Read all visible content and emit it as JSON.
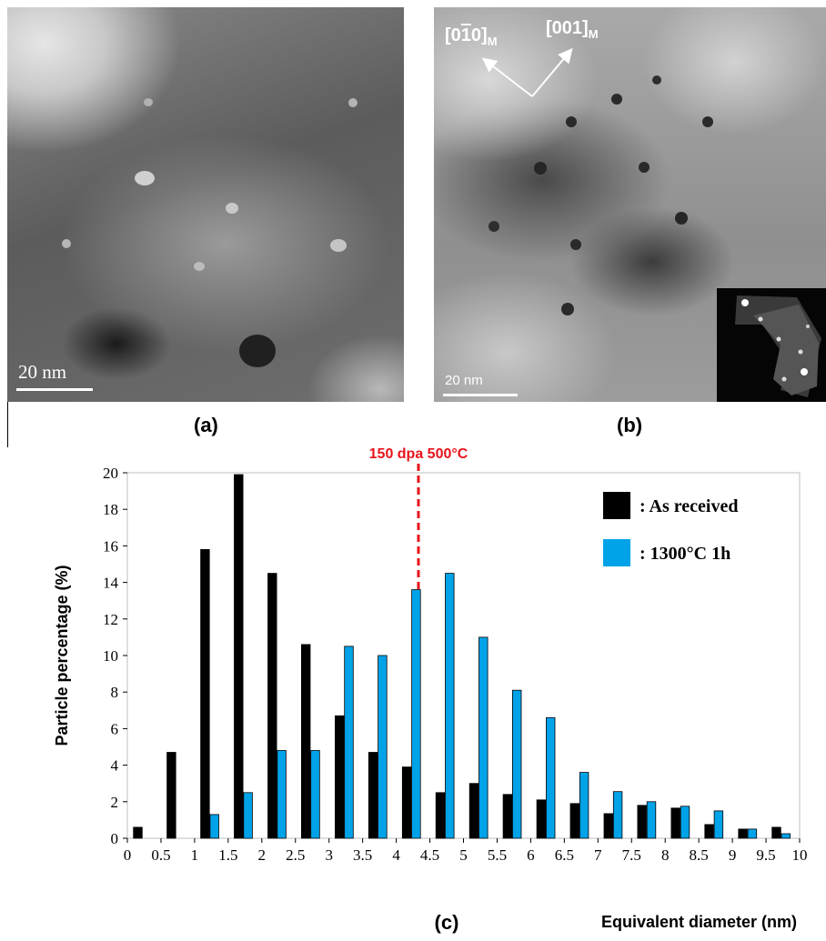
{
  "panel_a": {
    "caption": "(a)",
    "scale_bar_label": "20 nm"
  },
  "panel_b": {
    "caption": "(b)",
    "scale_bar_label": "20 nm",
    "direction_1": "[0",
    "direction_1_bar": "1",
    "direction_1_end": "0]",
    "direction_1_sub": "M",
    "direction_2": "[001]",
    "direction_2_sub": "M"
  },
  "panel_c": {
    "caption": "(c)"
  },
  "chart_data": {
    "type": "bar",
    "ylabel": "Particle percentage (%)",
    "xlabel": "Equivalent diameter (nm)",
    "ylim": [
      0,
      20
    ],
    "xlim": [
      0,
      10
    ],
    "y_ticks": [
      "0",
      "2",
      "4",
      "6",
      "8",
      "10",
      "12",
      "14",
      "16",
      "18",
      "20"
    ],
    "x_ticks": [
      "0",
      "0.5",
      "1",
      "1.5",
      "2",
      "2.5",
      "3",
      "3.5",
      "4",
      "4.5",
      "5",
      "5.5",
      "6",
      "6.5",
      "7",
      "7.5",
      "8",
      "8.5",
      "9",
      "9.5",
      "10"
    ],
    "bin_starts": [
      0,
      0.5,
      1,
      1.5,
      2,
      2.5,
      3,
      3.5,
      4,
      4.5,
      5,
      5.5,
      6,
      6.5,
      7,
      7.5,
      8,
      8.5,
      9,
      9.5
    ],
    "series": [
      {
        "name": ": As received",
        "color": "#000000",
        "values": [
          0.6,
          4.7,
          15.8,
          19.9,
          14.5,
          10.6,
          6.7,
          4.7,
          3.9,
          2.5,
          3.0,
          2.4,
          2.1,
          1.9,
          1.35,
          1.8,
          1.65,
          0.75,
          0.5,
          0.6
        ]
      },
      {
        "name": ": 1300°C 1h",
        "color": "#00a2e8",
        "values": [
          0,
          0,
          1.3,
          2.5,
          4.8,
          4.8,
          10.5,
          10.0,
          13.6,
          14.5,
          11.0,
          8.1,
          6.6,
          3.6,
          2.55,
          2.0,
          1.75,
          1.5,
          0.5,
          0.25
        ]
      }
    ],
    "reference_line": {
      "x": 4.33,
      "label": "150 dpa 500°C",
      "color": "#e8141c"
    },
    "legend_position": "top-right",
    "grid": false
  }
}
